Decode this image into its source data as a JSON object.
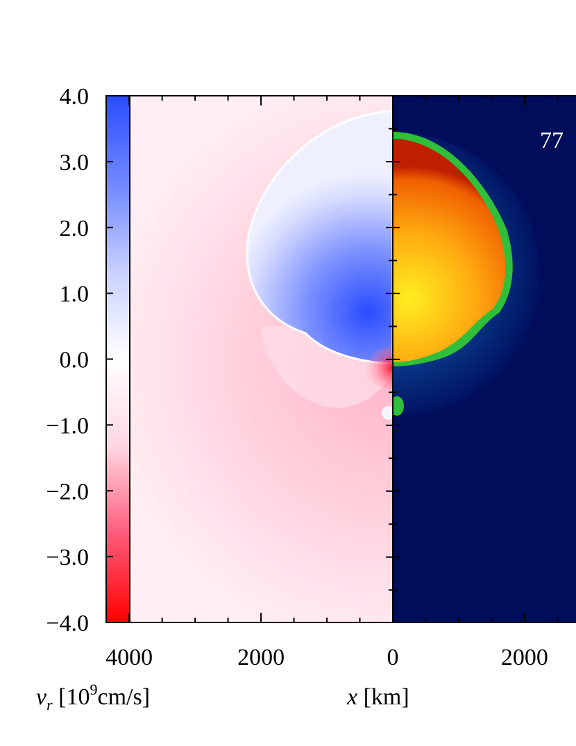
{
  "chart_data": {
    "type": "heatmap",
    "colorbar": {
      "ylim": [
        -4,
        4
      ],
      "yticks": [
        {
          "value": 4,
          "label": "4.0"
        },
        {
          "value": 3,
          "label": "3.0"
        },
        {
          "value": 2,
          "label": "2.0"
        },
        {
          "value": 1,
          "label": "1.0"
        },
        {
          "value": 0,
          "label": "0.0"
        },
        {
          "value": -1,
          "label": "−1.0"
        },
        {
          "value": -2,
          "label": "−2.0"
        },
        {
          "value": -3,
          "label": "−3.0"
        },
        {
          "value": -4,
          "label": "−4.0"
        }
      ],
      "colorscale": [
        "#ff0000",
        "#ff5a7a",
        "#ffd6e2",
        "#ffffff",
        "#c8d0ff",
        "#7088ff",
        "#2a4cff"
      ],
      "label": {
        "symbol": "v",
        "subscript": "r",
        "prefix": " [10",
        "exponent": "9",
        "unit": "cm/s]"
      }
    },
    "xlim": [
      -4000,
      2780
    ],
    "xticks": [
      {
        "value": -4000,
        "label": "4000"
      },
      {
        "value": -2000,
        "label": "2000"
      },
      0,
      2000
    ],
    "xlabel": {
      "symbol": "x",
      "unit": " [km]"
    },
    "annotation": "77"
  }
}
